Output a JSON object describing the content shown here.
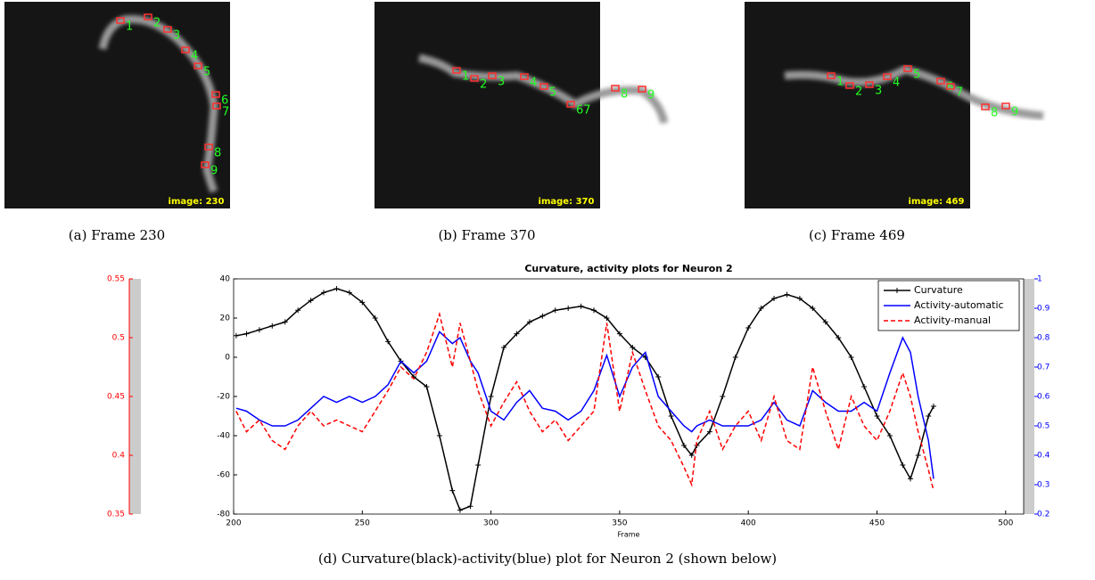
{
  "panels": [
    {
      "image_label": "image: 230",
      "caption": "(a)  Frame 230",
      "neurons": [
        "1",
        "2",
        "3",
        "4",
        "5",
        "6",
        "7",
        "8",
        "9"
      ]
    },
    {
      "image_label": "image: 370",
      "caption": "(b)  Frame 370",
      "neurons": [
        "1",
        "2",
        "3",
        "4",
        "5",
        "67",
        "8",
        "9"
      ]
    },
    {
      "image_label": "image: 469",
      "caption": "(c)  Frame 469",
      "neurons": [
        "1",
        "2",
        "3",
        "4",
        "5",
        "6",
        "7",
        "8",
        "9"
      ]
    }
  ],
  "caption_d": "(d)  Curvature(black)-activity(blue) plot for Neuron 2 (shown below)",
  "colorbar": {
    "ylim": [
      0.35,
      0.55
    ],
    "yticks": [
      0.35,
      0.4,
      0.45,
      0.5,
      0.55
    ],
    "color": "#ff0000"
  },
  "chart_data": {
    "type": "line",
    "title": "Curvature, activity plots for Neuron 2",
    "x_label": "Frame",
    "xlim": [
      200,
      507
    ],
    "xticks": [
      200,
      250,
      300,
      350,
      400,
      450,
      500
    ],
    "ylim": [
      -80,
      40
    ],
    "yticks": [
      -80,
      -60,
      -40,
      -20,
      0,
      20,
      40
    ],
    "y2lim": [
      0.2,
      1
    ],
    "y2ticks": [
      0.2,
      0.3,
      0.4,
      0.5,
      0.6,
      0.7,
      0.8,
      0.9,
      1
    ],
    "legend": "upper right",
    "x": [
      201,
      205,
      210,
      215,
      220,
      225,
      230,
      235,
      240,
      245,
      250,
      255,
      260,
      265,
      270,
      275,
      280,
      285,
      288,
      292,
      295,
      300,
      305,
      310,
      315,
      320,
      325,
      330,
      335,
      340,
      345,
      350,
      355,
      360,
      365,
      370,
      375,
      378,
      380,
      385,
      390,
      395,
      400,
      405,
      410,
      415,
      420,
      425,
      430,
      435,
      440,
      445,
      450,
      455,
      460,
      463,
      466,
      470,
      472
    ],
    "series": [
      {
        "name": "Curvature",
        "color": "#000000",
        "dash": "solid",
        "marker": "+",
        "values": [
          11,
          12,
          14,
          16,
          18,
          24,
          29,
          33,
          35,
          33,
          28,
          20,
          8,
          -2,
          -10,
          -15,
          -40,
          -68,
          -78,
          -76,
          -55,
          -20,
          5,
          12,
          18,
          21,
          24,
          25,
          26,
          24,
          20,
          12,
          5,
          0,
          -10,
          -30,
          -45,
          -50,
          -45,
          -38,
          -20,
          0,
          15,
          25,
          30,
          32,
          30,
          25,
          18,
          10,
          0,
          -15,
          -30,
          -40,
          -55,
          -62,
          -50,
          -30,
          -25
        ]
      },
      {
        "name": "Activity-automatic",
        "color": "#0000ff",
        "dash": "solid",
        "axis": "y2",
        "values": [
          0.56,
          0.55,
          0.52,
          0.5,
          0.5,
          0.52,
          0.56,
          0.6,
          0.58,
          0.6,
          0.58,
          0.6,
          0.64,
          0.72,
          0.68,
          0.72,
          0.82,
          0.78,
          0.8,
          0.72,
          0.68,
          0.55,
          0.52,
          0.58,
          0.62,
          0.56,
          0.55,
          0.52,
          0.55,
          0.62,
          0.74,
          0.6,
          0.7,
          0.75,
          0.6,
          0.55,
          0.5,
          0.48,
          0.5,
          0.52,
          0.5,
          0.5,
          0.5,
          0.52,
          0.58,
          0.52,
          0.5,
          0.62,
          0.58,
          0.55,
          0.55,
          0.58,
          0.55,
          0.68,
          0.8,
          0.75,
          0.6,
          0.45,
          0.32
        ]
      },
      {
        "name": "Activity-manual",
        "color": "#ff0000",
        "dash": "dashed",
        "axis": "y2",
        "values": [
          0.55,
          0.48,
          0.52,
          0.45,
          0.42,
          0.5,
          0.55,
          0.5,
          0.52,
          0.5,
          0.48,
          0.55,
          0.62,
          0.7,
          0.66,
          0.75,
          0.88,
          0.7,
          0.85,
          0.72,
          0.62,
          0.5,
          0.58,
          0.65,
          0.55,
          0.48,
          0.52,
          0.45,
          0.5,
          0.55,
          0.85,
          0.55,
          0.75,
          0.62,
          0.5,
          0.45,
          0.36,
          0.3,
          0.45,
          0.55,
          0.42,
          0.5,
          0.55,
          0.45,
          0.6,
          0.45,
          0.42,
          0.7,
          0.55,
          0.42,
          0.6,
          0.5,
          0.45,
          0.55,
          0.68,
          0.6,
          0.48,
          0.35,
          0.28
        ]
      }
    ]
  }
}
